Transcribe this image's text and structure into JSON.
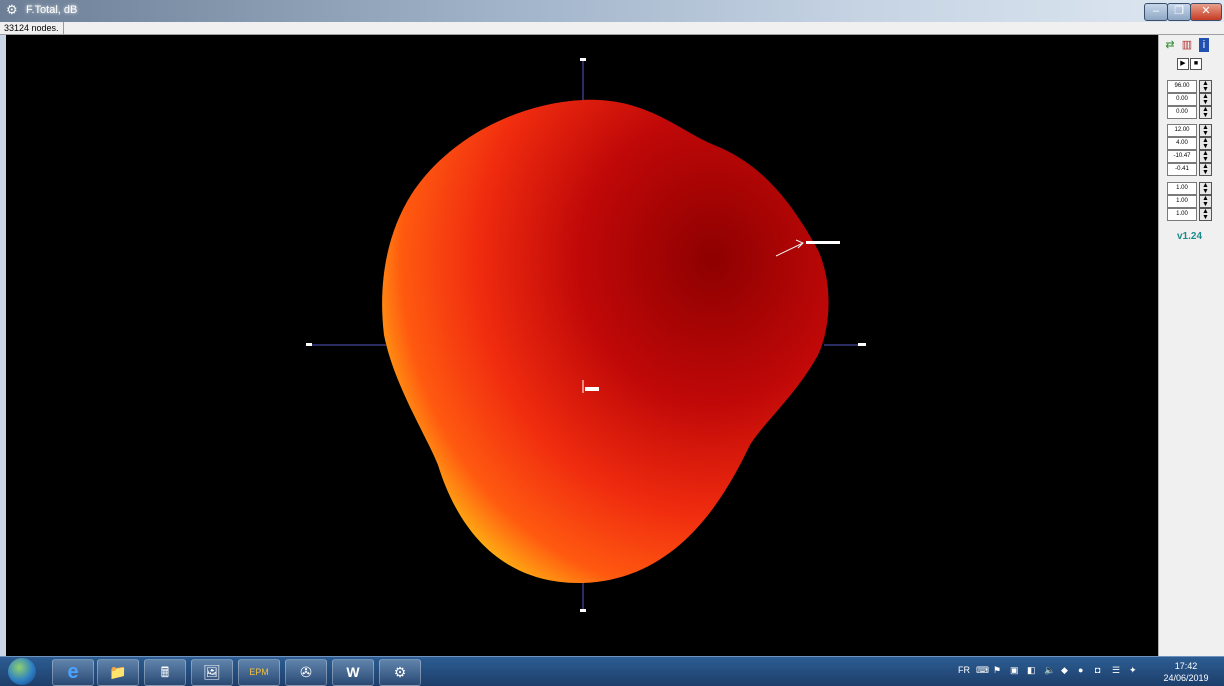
{
  "window": {
    "title": "F.Total, dB"
  },
  "status": {
    "text": "33124 nodes."
  },
  "panel": {
    "spinners": [
      {
        "value": "96.00"
      },
      {
        "value": "0.00"
      },
      {
        "value": "0.00"
      },
      {
        "value": "12.00"
      },
      {
        "value": "4.00"
      },
      {
        "value": "-10.47"
      },
      {
        "value": "-0.41"
      },
      {
        "value": "1.00"
      },
      {
        "value": "1.00"
      },
      {
        "value": "1.00"
      }
    ],
    "version": "v1.24",
    "play_glyph": "▶",
    "stop_glyph": "■"
  },
  "taskbar": {
    "start_icon": "windows-start-icon",
    "apps": [
      "ie-icon",
      "explorer-icon",
      "calculator-icon",
      "paint-icon",
      "epm-icon",
      "media-icon",
      "word-icon",
      "settings-gear-icon"
    ],
    "app_glyphs": [
      "e",
      "📁",
      "🖩",
      "🖼",
      "EPM",
      "✇",
      "W",
      "⚙"
    ],
    "tray_lang": "FR",
    "time": "17:42",
    "date": "24/06/2019"
  },
  "colors": {
    "accent_version": "#1a8a8a"
  }
}
